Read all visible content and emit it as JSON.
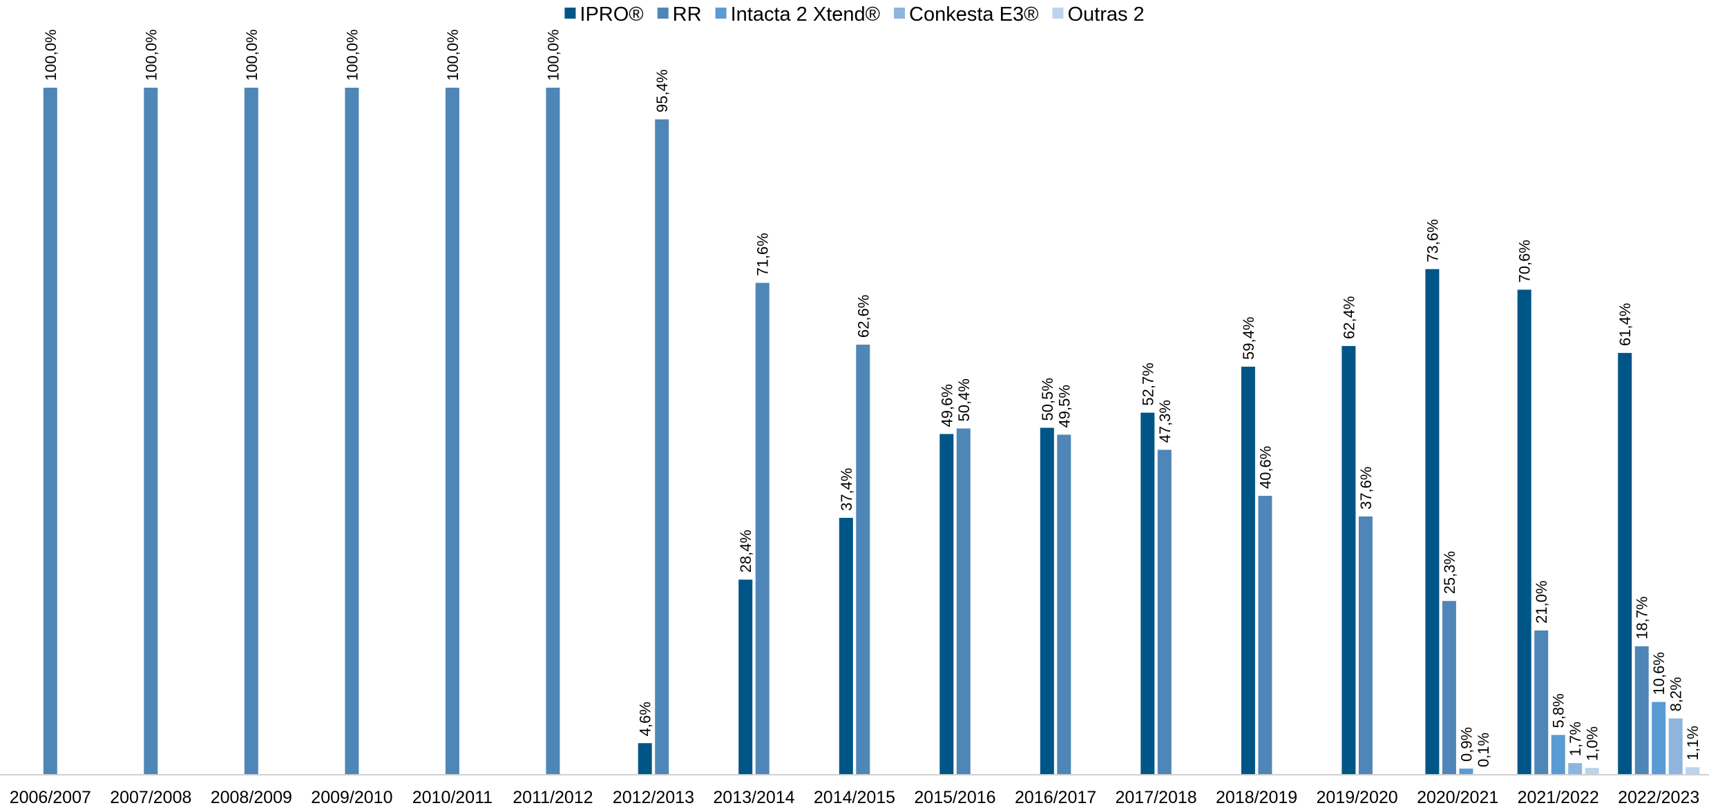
{
  "chart_data": {
    "type": "bar",
    "title": "",
    "xlabel": "",
    "ylabel": "",
    "ylim": [
      0,
      100
    ],
    "grid": false,
    "legend_position": "top",
    "categories": [
      "2006/2007",
      "2007/2008",
      "2008/2009",
      "2009/2010",
      "2010/2011",
      "2011/2012",
      "2012/2013",
      "2013/2014",
      "2014/2015",
      "2015/2016",
      "2016/2017",
      "2017/2018",
      "2018/2019",
      "2019/2020",
      "2020/2021",
      "2021/2022",
      "2022/2023"
    ],
    "series": [
      {
        "name": "IPRO®",
        "color": "#005587",
        "values": [
          null,
          null,
          null,
          null,
          null,
          null,
          4.6,
          28.4,
          37.4,
          49.6,
          50.5,
          52.7,
          59.4,
          62.4,
          73.6,
          70.6,
          61.4
        ],
        "labels": [
          null,
          null,
          null,
          null,
          null,
          null,
          "4,6%",
          "28,4%",
          "37,4%",
          "49,6%",
          "50,5%",
          "52,7%",
          "59,4%",
          "62,4%",
          "73,6%",
          "70,6%",
          "61,4%"
        ]
      },
      {
        "name": "RR",
        "color": "#4f86b8",
        "values": [
          100,
          100,
          100,
          100,
          100,
          100,
          95.4,
          71.6,
          62.6,
          50.4,
          49.5,
          47.3,
          40.6,
          37.6,
          25.3,
          21.0,
          18.7
        ],
        "labels": [
          "100,0%",
          "100,0%",
          "100,0%",
          "100,0%",
          "100,0%",
          "100,0%",
          "95,4%",
          "71,6%",
          "62,6%",
          "50,4%",
          "49,5%",
          "47,3%",
          "40,6%",
          "37,6%",
          "25,3%",
          "21,0%",
          "18,7%"
        ]
      },
      {
        "name": "Intacta 2 Xtend®",
        "color": "#5b9bd5",
        "values": [
          null,
          null,
          null,
          null,
          null,
          null,
          null,
          null,
          null,
          null,
          null,
          null,
          null,
          null,
          0.9,
          5.8,
          10.6
        ],
        "labels": [
          null,
          null,
          null,
          null,
          null,
          null,
          null,
          null,
          null,
          null,
          null,
          null,
          null,
          null,
          "0,9%",
          "5,8%",
          "10,6%"
        ]
      },
      {
        "name": "Conkesta E3®",
        "color": "#8fb4de",
        "values": [
          null,
          null,
          null,
          null,
          null,
          null,
          null,
          null,
          null,
          null,
          null,
          null,
          null,
          null,
          0.1,
          1.7,
          8.2
        ],
        "labels": [
          null,
          null,
          null,
          null,
          null,
          null,
          null,
          null,
          null,
          null,
          null,
          null,
          null,
          null,
          "0,1%",
          "1,7%",
          "8,2%"
        ]
      },
      {
        "name": "Outras 2",
        "color": "#bdd3ec",
        "values": [
          null,
          null,
          null,
          null,
          null,
          null,
          null,
          null,
          null,
          null,
          null,
          null,
          null,
          null,
          null,
          1.0,
          1.1
        ],
        "labels": [
          null,
          null,
          null,
          null,
          null,
          null,
          null,
          null,
          null,
          null,
          null,
          null,
          null,
          null,
          null,
          "1,0%",
          "1,1%"
        ]
      }
    ]
  }
}
